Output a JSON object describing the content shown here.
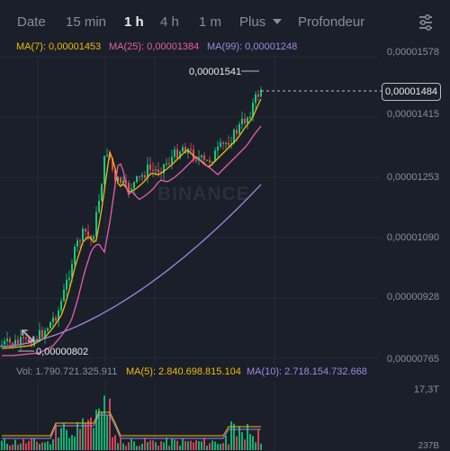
{
  "tabs": [
    {
      "label": "Date",
      "active": false
    },
    {
      "label": "15 min",
      "active": false
    },
    {
      "label": "1 h",
      "active": true
    },
    {
      "label": "4 h",
      "active": false
    },
    {
      "label": "1 m",
      "active": false
    },
    {
      "label": "Plus",
      "active": false
    },
    {
      "label": "Profondeur",
      "active": false
    }
  ],
  "indicators": {
    "ma7": "MA(7): 0,00001453",
    "ma25": "MA(25): 0,00001384",
    "ma99": "MA(99): 0,00001248"
  },
  "price_axis": [
    "0,00001578",
    "0,00001415",
    "0,00001253",
    "0,00001090",
    "0,00000928",
    "0,00000765"
  ],
  "current_price": "0,00001484",
  "high_marker": "0,00001541",
  "low_marker": "0,00000802",
  "watermark": "BINANCE",
  "volume": {
    "vol": "Vol: 1.790.721.325.911",
    "ma5": "MA(5): 2.840.698.815.104",
    "ma10": "MA(10): 2.718.154.732.668",
    "scale_top": "17,3T",
    "scale_bottom": "237B"
  },
  "colors": {
    "up": "#0ecb81",
    "down": "#f6465d",
    "ma7": "#f0b90b",
    "ma25": "#e75fa8",
    "ma99": "#9b8ae0",
    "background": "#1b1f29"
  },
  "icons": [
    "chart-settings-icon",
    "expand-icon"
  ]
}
